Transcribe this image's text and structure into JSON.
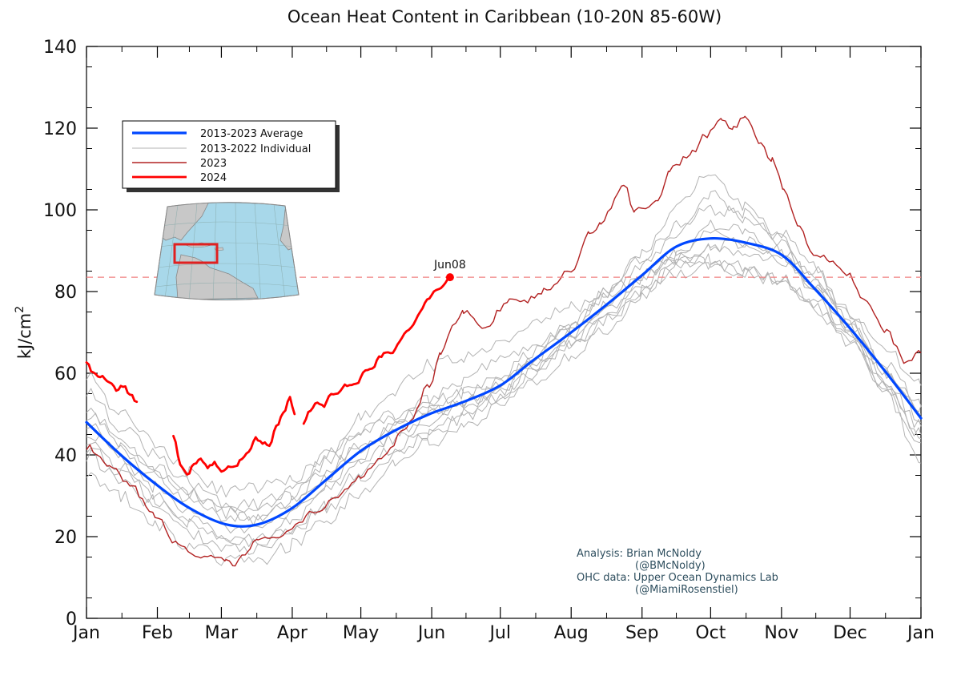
{
  "chart_data": {
    "type": "line",
    "title": "Ocean Heat Content in Caribbean (10-20N 85-60W)",
    "xlabel": "",
    "ylabel": "kJ/cm",
    "ylabel_superscript": "2",
    "ylim": [
      0,
      140
    ],
    "yticks": [
      0,
      20,
      40,
      60,
      80,
      100,
      120,
      140
    ],
    "xlim": [
      0,
      365
    ],
    "xticks": [
      {
        "day": 0,
        "label": "Jan"
      },
      {
        "day": 31,
        "label": "Feb"
      },
      {
        "day": 59,
        "label": "Mar"
      },
      {
        "day": 90,
        "label": "Apr"
      },
      {
        "day": 120,
        "label": "May"
      },
      {
        "day": 151,
        "label": "Jun"
      },
      {
        "day": 181,
        "label": "Jul"
      },
      {
        "day": 212,
        "label": "Aug"
      },
      {
        "day": 243,
        "label": "Sep"
      },
      {
        "day": 273,
        "label": "Oct"
      },
      {
        "day": 304,
        "label": "Nov"
      },
      {
        "day": 334,
        "label": "Dec"
      },
      {
        "day": 365,
        "label": "Jan"
      }
    ],
    "grid": false,
    "legend_position": "upper-left",
    "reference_line": {
      "y": 83.5,
      "color": "#f08080",
      "style": "dashed"
    },
    "marker": {
      "day": 159,
      "value": 83.5,
      "label": "Jun08",
      "color": "#ff0000"
    },
    "series": [
      {
        "name": "2013-2023 Average",
        "color": "#0047ff",
        "width": 3.2,
        "x": [
          0,
          15,
          30,
          45,
          61,
          75,
          90,
          105,
          120,
          135,
          150,
          165,
          181,
          195,
          212,
          228,
          243,
          258,
          273,
          288,
          304,
          318,
          334,
          350,
          365
        ],
        "values": [
          48,
          40,
          33,
          27,
          23,
          23,
          27,
          34,
          41,
          46,
          50,
          53,
          57,
          63,
          70,
          77,
          84,
          91,
          93,
          92,
          89,
          81,
          71,
          60,
          49
        ]
      },
      {
        "name": "2013-2022 Individual",
        "color": "#b3b3b3",
        "width": 1,
        "members": [
          {
            "x": [
              0,
              15,
              30,
              45,
              61,
              75,
              90,
              105,
              120,
              135,
              150,
              165,
              181,
              195,
              212,
              228,
              243,
              258,
              273,
              288,
              304,
              318,
              334,
              350,
              365
            ],
            "values": [
              52,
              44,
              36,
              31,
              27,
              28,
              31,
              38,
              45,
              49,
              52,
              55,
              59,
              65,
              72,
              80,
              86,
              94,
              104,
              98,
              93,
              83,
              72,
              60,
              50
            ]
          },
          {
            "x": [
              0,
              15,
              30,
              45,
              61,
              75,
              90,
              105,
              120,
              135,
              150,
              165,
              181,
              195,
              212,
              228,
              243,
              258,
              273,
              288,
              304,
              318,
              334,
              350,
              365
            ],
            "values": [
              44,
              37,
              30,
              24,
              20,
              20,
              24,
              31,
              38,
              44,
              48,
              52,
              57,
              64,
              71,
              80,
              89,
              100,
              110,
              101,
              92,
              82,
              70,
              57,
              45
            ]
          },
          {
            "x": [
              0,
              15,
              30,
              45,
              61,
              75,
              90,
              105,
              120,
              135,
              150,
              165,
              181,
              195,
              212,
              228,
              243,
              258,
              273,
              288,
              304,
              318,
              334,
              350,
              365
            ],
            "values": [
              40,
              34,
              27,
              21,
              17,
              17,
              21,
              27,
              34,
              40,
              45,
              49,
              54,
              60,
              67,
              74,
              82,
              88,
              87,
              85,
              82,
              76,
              67,
              55,
              43
            ]
          },
          {
            "x": [
              0,
              15,
              30,
              45,
              61,
              75,
              90,
              105,
              120,
              135,
              150,
              165,
              181,
              195,
              212,
              228,
              243,
              258,
              273,
              288,
              304,
              318,
              334,
              350,
              365
            ],
            "values": [
              56,
              47,
              40,
              33,
              28,
              27,
              30,
              40,
              49,
              56,
              62,
              64,
              68,
              72,
              76,
              80,
              84,
              88,
              90,
              90,
              88,
              82,
              74,
              66,
              57
            ]
          },
          {
            "x": [
              0,
              15,
              30,
              45,
              61,
              75,
              90,
              105,
              120,
              135,
              150,
              165,
              181,
              195,
              212,
              228,
              243,
              258,
              273,
              288,
              304,
              318,
              334,
              350,
              365
            ],
            "values": [
              36,
              30,
              23,
              18,
              14,
              14,
              18,
              24,
              31,
              38,
              43,
              47,
              52,
              58,
              64,
              71,
              79,
              86,
              88,
              86,
              83,
              77,
              68,
              55,
              38
            ]
          },
          {
            "x": [
              0,
              15,
              30,
              45,
              61,
              75,
              90,
              105,
              120,
              135,
              150,
              165,
              181,
              195,
              212,
              228,
              243,
              258,
              273,
              288,
              304,
              318,
              334,
              350,
              365
            ],
            "values": [
              48,
              41,
              35,
              29,
              25,
              25,
              29,
              36,
              43,
              48,
              54,
              58,
              64,
              67,
              70,
              74,
              80,
              84,
              86,
              85,
              83,
              78,
              70,
              58,
              47
            ]
          },
          {
            "x": [
              0,
              15,
              30,
              45,
              61,
              75,
              90,
              105,
              120,
              135,
              150,
              165,
              181,
              195,
              212,
              228,
              243,
              258,
              273,
              288,
              304,
              318,
              334,
              350,
              365
            ],
            "values": [
              46,
              39,
              32,
              26,
              22,
              22,
              26,
              33,
              40,
              45,
              50,
              53,
              56,
              63,
              71,
              79,
              88,
              96,
              100,
              99,
              94,
              86,
              73,
              60,
              48
            ]
          },
          {
            "x": [
              0,
              15,
              30,
              45,
              61,
              75,
              90,
              105,
              120,
              135,
              150,
              165,
              181,
              195,
              212,
              228,
              243,
              258,
              273,
              288,
              304,
              318,
              334,
              350,
              365
            ],
            "values": [
              60,
              50,
              43,
              36,
              31,
              32,
              34,
              40,
              46,
              50,
              53,
              55,
              58,
              62,
              67,
              73,
              80,
              87,
              91,
              92,
              90,
              85,
              75,
              62,
              52
            ]
          },
          {
            "x": [
              0,
              15,
              30,
              45,
              61,
              75,
              90,
              105,
              120,
              135,
              150,
              165,
              181,
              195,
              212,
              228,
              243,
              258,
              273,
              288,
              304,
              318,
              334,
              350,
              365
            ],
            "values": [
              42,
              36,
              29,
              23,
              19,
              18,
              22,
              28,
              36,
              42,
              46,
              50,
              54,
              60,
              68,
              76,
              83,
              90,
              94,
              92,
              88,
              80,
              69,
              56,
              44
            ]
          },
          {
            "x": [
              0,
              15,
              30,
              45,
              61,
              75,
              90,
              105,
              120,
              135,
              150,
              165,
              181,
              195,
              212,
              228,
              243,
              258,
              273,
              288,
              304,
              318,
              334,
              350,
              365
            ],
            "values": [
              50,
              43,
              37,
              31,
              26,
              24,
              28,
              35,
              42,
              47,
              51,
              52,
              55,
              61,
              69,
              77,
              84,
              89,
              96,
              95,
              89,
              82,
              71,
              60,
              52
            ]
          }
        ]
      },
      {
        "name": "2023",
        "color": "#b22222",
        "width": 1.4,
        "x": [
          0,
          10,
          20,
          30,
          40,
          50,
          61,
          65,
          70,
          75,
          80,
          90,
          100,
          110,
          120,
          130,
          140,
          150,
          155,
          160,
          165,
          170,
          175,
          181,
          185,
          190,
          200,
          212,
          220,
          225,
          235,
          240,
          250,
          255,
          265,
          270,
          278,
          283,
          288,
          295,
          300,
          305,
          312,
          318,
          325,
          334,
          340,
          350,
          358,
          365
        ],
        "values": [
          42,
          37,
          32,
          25,
          18,
          15,
          14,
          13,
          16,
          20,
          19,
          22,
          26,
          30,
          35,
          40,
          47,
          57,
          65,
          71,
          75,
          73,
          71,
          76,
          78,
          77,
          80,
          85,
          94,
          97,
          106,
          100,
          102,
          110,
          114,
          118,
          122,
          120,
          123,
          116,
          112,
          105,
          96,
          89,
          88,
          84,
          78,
          70,
          63,
          65
        ]
      },
      {
        "name": "2024",
        "color": "#ff0000",
        "width": 2.8,
        "segments": [
          {
            "x": [
              0,
              3,
              7,
              10,
              13,
              16,
              19,
              22
            ],
            "values": [
              63,
              60,
              59,
              58,
              56,
              57,
              55,
              53
            ]
          },
          {
            "x": [
              38,
              41,
              44,
              47,
              50,
              53,
              56,
              59,
              62,
              65,
              68,
              71,
              74,
              77,
              80,
              83,
              86,
              89,
              91
            ],
            "values": [
              45,
              38,
              35,
              38,
              39,
              37,
              38,
              36,
              37,
              37,
              39,
              41,
              44,
              43,
              42,
              47,
              50,
              54,
              50
            ]
          },
          {
            "x": [
              95,
              98,
              101,
              104,
              107,
              110,
              113,
              116,
              119,
              122,
              125,
              128,
              131,
              134,
              137,
              140,
              143,
              146,
              149,
              152,
              155,
              157,
              159
            ],
            "values": [
              48,
              51,
              53,
              52,
              55,
              55,
              57,
              57,
              58,
              61,
              61,
              64,
              65,
              65,
              68,
              70,
              72,
              75,
              78,
              80,
              81,
              82,
              83.5
            ]
          }
        ]
      }
    ],
    "annotations": [
      "Analysis: Brian McNoldy",
      "(@BMcNoldy)",
      "OHC data: Upper Ocean Dynamics Lab",
      "(@MiamiRosenstiel)"
    ]
  }
}
